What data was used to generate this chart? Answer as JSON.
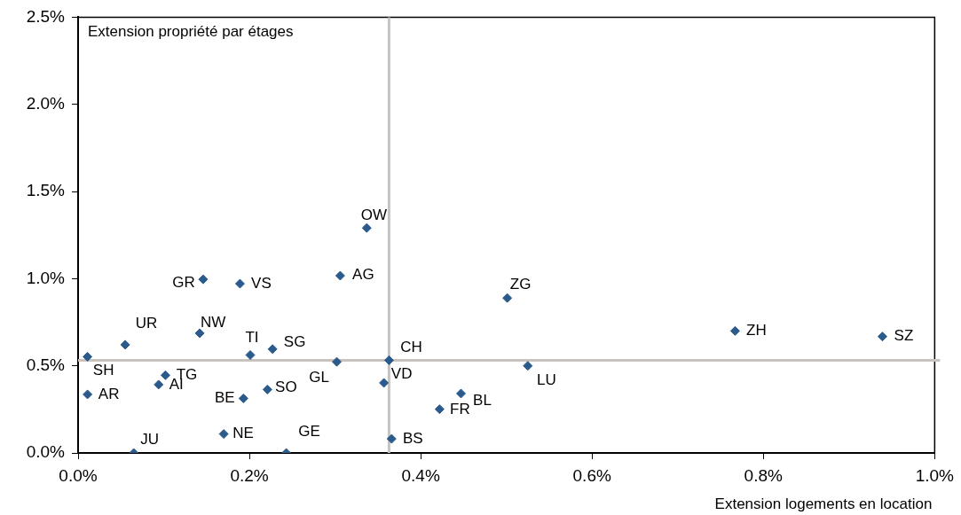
{
  "chart_data": {
    "type": "scatter",
    "xlabel": "Extension logements en location",
    "ylabel": "Extension propriété par étages",
    "x": [
      0.011,
      0.055,
      0.142,
      0.201,
      0.227,
      0.102,
      0.094,
      0.011,
      0.193,
      0.221,
      0.17,
      0.065,
      0.243,
      0.337,
      0.306,
      0.501,
      0.363,
      0.302,
      0.525,
      0.357,
      0.447,
      0.422,
      0.366,
      0.767,
      0.939,
      0.146,
      0.189
    ],
    "series": [
      {
        "color": "#2a5b8c",
        "values": [
          0.552,
          0.621,
          0.687,
          0.562,
          0.596,
          0.446,
          0.392,
          0.336,
          0.313,
          0.364,
          0.109,
          0.0,
          0.0,
          1.291,
          1.017,
          0.889,
          0.532,
          0.523,
          0.5,
          0.402,
          0.341,
          0.251,
          0.081,
          0.7,
          0.668,
          0.996,
          0.971
        ]
      }
    ],
    "annotations": [
      {
        "text": "SH",
        "x": 0.011,
        "y": 0.552
      },
      {
        "text": "UR",
        "x": 0.055,
        "y": 0.621
      },
      {
        "text": "NW",
        "x": 0.142,
        "y": 0.687
      },
      {
        "text": "TI",
        "x": 0.201,
        "y": 0.562
      },
      {
        "text": "SG",
        "x": 0.227,
        "y": 0.596
      },
      {
        "text": "TG",
        "x": 0.102,
        "y": 0.446
      },
      {
        "text": "AI",
        "x": 0.094,
        "y": 0.392
      },
      {
        "text": "AR",
        "x": 0.011,
        "y": 0.336
      },
      {
        "text": "BE",
        "x": 0.193,
        "y": 0.313
      },
      {
        "text": "SO",
        "x": 0.221,
        "y": 0.364
      },
      {
        "text": "NE",
        "x": 0.17,
        "y": 0.109
      },
      {
        "text": "JU",
        "x": 0.065,
        "y": 0.0
      },
      {
        "text": "GE",
        "x": 0.243,
        "y": 0.0
      },
      {
        "text": "OW",
        "x": 0.337,
        "y": 1.291
      },
      {
        "text": "AG",
        "x": 0.306,
        "y": 1.017
      },
      {
        "text": "ZG",
        "x": 0.501,
        "y": 0.889
      },
      {
        "text": "CH",
        "x": 0.363,
        "y": 0.532
      },
      {
        "text": "GL",
        "x": 0.302,
        "y": 0.523
      },
      {
        "text": "LU",
        "x": 0.525,
        "y": 0.5
      },
      {
        "text": "VD",
        "x": 0.357,
        "y": 0.402
      },
      {
        "text": "BL",
        "x": 0.447,
        "y": 0.341
      },
      {
        "text": "FR",
        "x": 0.422,
        "y": 0.251
      },
      {
        "text": "BS",
        "x": 0.366,
        "y": 0.081
      },
      {
        "text": "ZH",
        "x": 0.767,
        "y": 0.7
      },
      {
        "text": "SZ",
        "x": 0.939,
        "y": 0.668
      },
      {
        "text": "GR",
        "x": 0.146,
        "y": 0.996
      },
      {
        "text": "VS",
        "x": 0.189,
        "y": 0.971
      }
    ],
    "ref_lines": [
      {
        "axis": "x",
        "value": 0.363,
        "color": "#c9c2bd"
      },
      {
        "axis": "y",
        "value": 0.532,
        "color": "#c9c2bd"
      }
    ],
    "xlim": [
      0,
      1.0
    ],
    "ylim": [
      0,
      2.5
    ],
    "xticks": [
      {
        "value": 0,
        "label": "0.0%"
      },
      {
        "value": 0.2,
        "label": "0.2%"
      },
      {
        "value": 0.4,
        "label": "0.4%"
      },
      {
        "value": 0.6,
        "label": "0.6%"
      },
      {
        "value": 0.8,
        "label": "0.8%"
      },
      {
        "value": 1.0,
        "label": "1.0%"
      }
    ],
    "yticks": [
      {
        "value": 0,
        "label": "0.0%"
      },
      {
        "value": 0.5,
        "label": "0.5%"
      },
      {
        "value": 1.0,
        "label": "1.0%"
      },
      {
        "value": 1.5,
        "label": "1.5%"
      },
      {
        "value": 2.0,
        "label": "2.0%"
      },
      {
        "value": 2.5,
        "label": "2.5%"
      }
    ],
    "grid": false,
    "legend": false,
    "marker": "diamond"
  }
}
